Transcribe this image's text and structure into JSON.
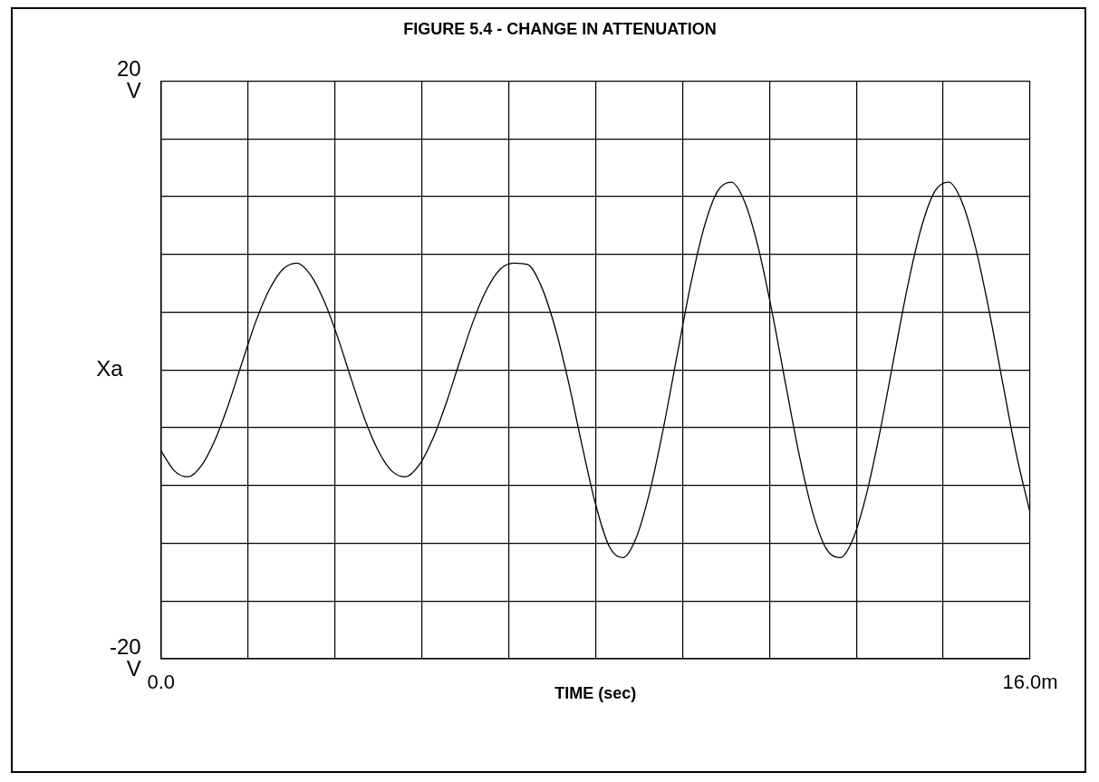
{
  "chart_data": {
    "type": "line",
    "title": "FIGURE 5.4 - CHANGE IN ATTENUATION",
    "xlabel": "TIME (sec)",
    "ylabel": "Xa",
    "x": [
      0,
      0.25,
      0.5,
      0.75,
      1,
      1.25,
      1.5,
      1.75,
      2,
      2.25,
      2.5,
      2.75,
      3,
      3.25,
      3.5,
      3.75,
      4,
      4.25,
      4.5,
      4.75,
      5,
      5.25,
      5.5,
      5.75,
      6,
      6.25,
      6.5,
      6.75,
      7,
      7.25,
      7.5,
      7.75,
      8,
      8.25,
      8.5,
      8.75,
      9,
      9.25,
      9.5,
      9.75,
      10,
      10.25,
      10.5,
      10.75,
      11,
      11.25,
      11.5,
      11.75,
      12,
      12.25,
      12.5,
      12.75,
      13,
      13.25,
      13.5,
      13.75,
      14,
      14.25,
      14.5,
      14.75,
      15,
      15.25,
      15.5,
      15.75,
      16
    ],
    "series": [
      {
        "color": "#000000",
        "values": [
          -5.6,
          -7.0,
          -7.4,
          -6.6,
          -4.8,
          -2.3,
          0.6,
          3.4,
          5.6,
          7.0,
          7.4,
          6.6,
          4.8,
          2.3,
          -0.6,
          -3.4,
          -5.6,
          -7.0,
          -7.4,
          -6.6,
          -4.8,
          -2.3,
          0.6,
          3.4,
          5.6,
          7.0,
          7.4,
          7.3,
          5.8,
          3.0,
          -0.8,
          -5.2,
          -9.3,
          -12.2,
          -13.0,
          -11.6,
          -8.4,
          -4.0,
          1.0,
          5.9,
          9.9,
          12.4,
          13.0,
          11.6,
          8.4,
          4.0,
          -1.0,
          -5.9,
          -9.9,
          -12.4,
          -13.0,
          -11.6,
          -8.4,
          -4.0,
          1.0,
          5.9,
          9.9,
          12.4,
          13.0,
          11.6,
          8.4,
          4.0,
          -1.0,
          -5.9,
          -9.9
        ]
      }
    ],
    "xlim": [
      0,
      16
    ],
    "xticks": [
      {
        "value": 0,
        "label": "0.0"
      },
      {
        "value": 1.6,
        "label": null
      },
      {
        "value": 3.2,
        "label": null
      },
      {
        "value": 4.8,
        "label": null
      },
      {
        "value": 6.4,
        "label": null
      },
      {
        "value": 8,
        "label": null
      },
      {
        "value": 9.6,
        "label": null
      },
      {
        "value": 11.2,
        "label": null
      },
      {
        "value": 12.8,
        "label": null
      },
      {
        "value": 14.4,
        "label": null
      },
      {
        "value": 16,
        "label": "16.0m"
      }
    ],
    "ylim": [
      -20,
      20
    ],
    "yticks": [
      {
        "value": -20,
        "label": "-20 V"
      },
      {
        "value": -16,
        "label": null
      },
      {
        "value": -12,
        "label": null
      },
      {
        "value": -8,
        "label": null
      },
      {
        "value": -4,
        "label": null
      },
      {
        "value": 0,
        "label": null
      },
      {
        "value": 4,
        "label": null
      },
      {
        "value": 8,
        "label": null
      },
      {
        "value": 12,
        "label": null
      },
      {
        "value": 16,
        "label": null
      },
      {
        "value": 20,
        "label": "20 V"
      }
    ],
    "grid": true,
    "legend": false,
    "marker": "none",
    "line_style": "solid"
  }
}
